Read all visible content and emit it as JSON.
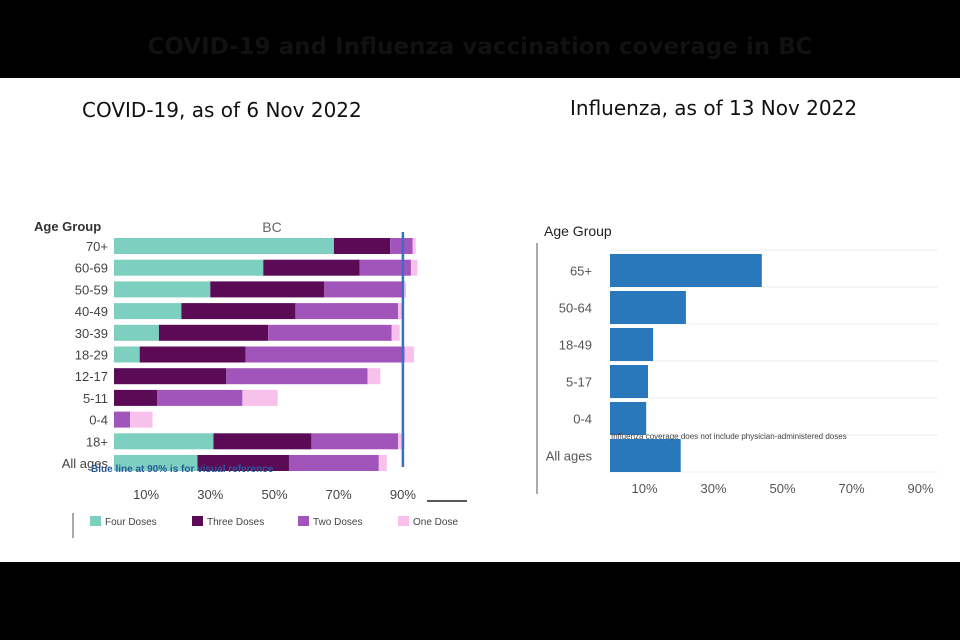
{
  "page": {
    "title": "COVID-19 and Influenza vaccination coverage in BC",
    "left_note": "Blue line at 90% is for visual reference",
    "right_note": "Influenza coverage does not include physician-administered doses"
  },
  "chart_data": [
    {
      "type": "bar",
      "orientation": "horizontal",
      "stacked": true,
      "title": "COVID-19, as of 6 Nov 2022",
      "subtitle": "BC",
      "ylabel": "Age Group",
      "categories": [
        "70+",
        "60-69",
        "50-59",
        "40-49",
        "30-39",
        "18-29",
        "12-17",
        "5-11",
        "0-4",
        "18+",
        "All ages"
      ],
      "xlim": [
        0,
        95
      ],
      "xticks": [
        "10%",
        "30%",
        "50%",
        "70%",
        "90%"
      ],
      "xtick_values": [
        10,
        30,
        50,
        70,
        90
      ],
      "reference_line": 90,
      "legend_position": "bottom",
      "series": [
        {
          "name": "Four Doses",
          "color": "#7dcfbf",
          "values": [
            68.5,
            46.5,
            30,
            21,
            14,
            8,
            0,
            0,
            0,
            31,
            26
          ]
        },
        {
          "name": "Three Doses",
          "color": "#5b0a56",
          "values": [
            17.5,
            30,
            35.5,
            35.5,
            34,
            33,
            35,
            13.5,
            0,
            30.5,
            28.5
          ]
        },
        {
          "name": "Two Doses",
          "color": "#a155bb",
          "values": [
            7,
            16,
            24.5,
            32,
            38.5,
            49.5,
            44,
            26.5,
            5,
            27,
            28
          ]
        },
        {
          "name": "One Dose",
          "color": "#f7c1ec",
          "values": [
            1,
            2,
            1,
            1.5,
            2.5,
            3,
            4,
            11,
            7,
            2,
            2.5
          ]
        }
      ]
    },
    {
      "type": "bar",
      "orientation": "horizontal",
      "title": "Influenza, as of 13 Nov 2022",
      "ylabel": "Age Group",
      "categories": [
        "65+",
        "50-64",
        "18-49",
        "5-17",
        "0-4",
        "All ages"
      ],
      "values": [
        44,
        22,
        12.5,
        11,
        10.5,
        20.5
      ],
      "color": "#2a78bc",
      "xlim": [
        0,
        94
      ],
      "xticks": [
        "10%",
        "30%",
        "50%",
        "70%",
        "90%"
      ],
      "xtick_values": [
        10,
        30,
        50,
        70,
        90
      ],
      "grid": true
    }
  ]
}
